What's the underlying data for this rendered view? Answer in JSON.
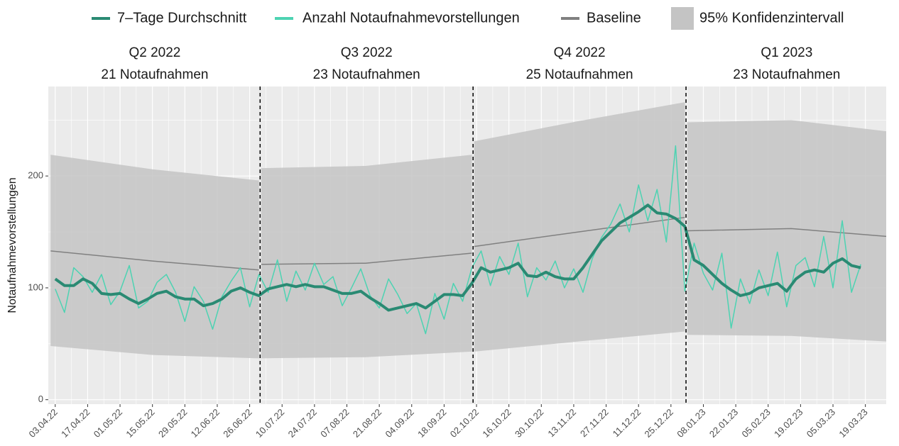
{
  "chart_data": {
    "type": "line",
    "y_label": "Notaufnahmevorstellungen",
    "ylim": [
      -4,
      280
    ],
    "yticks": [
      0,
      100,
      200
    ],
    "xlim": [
      "31.03.22",
      "28.03.23"
    ],
    "xticks": [
      "03.04.22",
      "17.04.22",
      "01.05.22",
      "15.05.22",
      "29.05.22",
      "12.06.22",
      "26.06.22",
      "10.07.22",
      "24.07.22",
      "07.08.22",
      "21.08.22",
      "04.09.22",
      "18.09.22",
      "02.10.22",
      "16.10.22",
      "30.10.22",
      "13.11.22",
      "27.11.22",
      "11.12.22",
      "25.12.22",
      "08.01.23",
      "22.01.23",
      "05.02.23",
      "19.02.23",
      "05.03.23",
      "19.03.23"
    ],
    "grid": true,
    "dividers": [
      "01.07.22",
      "01.10.22",
      "01.01.23"
    ],
    "x": [
      "03.04.22",
      "07.04.22",
      "11.04.22",
      "15.04.22",
      "19.04.22",
      "23.04.22",
      "27.04.22",
      "01.05.22",
      "05.05.22",
      "09.05.22",
      "13.05.22",
      "17.05.22",
      "21.05.22",
      "25.05.22",
      "29.05.22",
      "02.06.22",
      "06.06.22",
      "10.06.22",
      "14.06.22",
      "18.06.22",
      "22.06.22",
      "26.06.22",
      "30.06.22",
      "04.07.22",
      "08.07.22",
      "12.07.22",
      "16.07.22",
      "20.07.22",
      "24.07.22",
      "28.07.22",
      "01.08.22",
      "05.08.22",
      "09.08.22",
      "13.08.22",
      "17.08.22",
      "21.08.22",
      "25.08.22",
      "29.08.22",
      "02.09.22",
      "06.09.22",
      "10.09.22",
      "14.09.22",
      "18.09.22",
      "22.09.22",
      "26.09.22",
      "30.09.22",
      "04.10.22",
      "08.10.22",
      "12.10.22",
      "16.10.22",
      "20.10.22",
      "24.10.22",
      "28.10.22",
      "01.11.22",
      "05.11.22",
      "09.11.22",
      "13.11.22",
      "17.11.22",
      "21.11.22",
      "25.11.22",
      "29.11.22",
      "03.12.22",
      "07.12.22",
      "11.12.22",
      "15.12.22",
      "19.12.22",
      "23.12.22",
      "27.12.22",
      "31.12.22",
      "04.01.23",
      "08.01.23",
      "12.01.23",
      "16.01.23",
      "20.01.23",
      "24.01.23",
      "28.01.23",
      "01.02.23",
      "05.02.23",
      "09.02.23",
      "13.02.23",
      "17.02.23",
      "21.02.23",
      "25.02.23",
      "01.03.23",
      "05.03.23",
      "09.03.23",
      "13.03.23",
      "17.03.23"
    ],
    "series": [
      {
        "name": "7–Tage Durchschnitt",
        "color": "#2a8a73",
        "width": 4,
        "values": [
          108,
          102,
          102,
          108,
          104,
          95,
          94,
          95,
          90,
          86,
          90,
          95,
          97,
          92,
          90,
          90,
          84,
          86,
          90,
          97,
          100,
          96,
          93,
          99,
          101,
          103,
          101,
          103,
          101,
          101,
          98,
          95,
          95,
          97,
          91,
          86,
          80,
          82,
          84,
          86,
          82,
          88,
          94,
          94,
          93,
          104,
          118,
          114,
          116,
          118,
          122,
          111,
          110,
          114,
          110,
          108,
          108,
          118,
          130,
          142,
          150,
          158,
          163,
          168,
          174,
          167,
          166,
          162,
          155,
          125,
          120,
          112,
          104,
          98,
          93,
          95,
          100,
          102,
          104,
          97,
          108,
          114,
          116,
          114,
          122,
          126,
          120,
          118
        ]
      },
      {
        "name": "Anzahl Notaufnahmevorstellungen",
        "color": "#4dd3b2",
        "width": 1.5,
        "values": [
          99,
          78,
          118,
          110,
          96,
          112,
          85,
          97,
          120,
          82,
          88,
          105,
          112,
          96,
          70,
          101,
          88,
          63,
          92,
          106,
          118,
          83,
          112,
          96,
          125,
          88,
          115,
          98,
          122,
          103,
          110,
          84,
          100,
          117,
          93,
          82,
          108,
          94,
          77,
          86,
          59,
          95,
          72,
          104,
          88,
          118,
          133,
          102,
          128,
          112,
          140,
          92,
          118,
          107,
          124,
          100,
          117,
          96,
          126,
          145,
          157,
          175,
          150,
          192,
          160,
          188,
          141,
          227,
          97,
          140,
          113,
          98,
          131,
          64,
          108,
          86,
          116,
          93,
          132,
          83,
          120,
          127,
          101,
          146,
          100,
          160,
          96,
          121
        ]
      }
    ],
    "baseline_name": "Baseline",
    "baseline_color": "#808080",
    "band_name": "95% Konfidenzintervall",
    "band_color": "#c4c4c4",
    "panels": [
      {
        "title": "Q2 2022",
        "subtitle": "21 Notaufnahmen",
        "x": [
          "01.04.22",
          "15.05.22",
          "30.06.22"
        ],
        "baseline": [
          133,
          124,
          116
        ],
        "lower": [
          48,
          40,
          37
        ],
        "upper": [
          219,
          206,
          196
        ]
      },
      {
        "title": "Q3 2022",
        "subtitle": "23 Notaufnahmen",
        "x": [
          "01.07.22",
          "15.08.22",
          "30.09.22"
        ],
        "baseline": [
          121,
          122,
          131
        ],
        "lower": [
          37,
          38,
          43
        ],
        "upper": [
          207,
          209,
          219
        ]
      },
      {
        "title": "Q4 2022",
        "subtitle": "25 Notaufnahmen",
        "x": [
          "01.10.22",
          "15.11.22",
          "31.12.22"
        ],
        "baseline": [
          137,
          150,
          163
        ],
        "lower": [
          43,
          52,
          61
        ],
        "upper": [
          231,
          249,
          266
        ]
      },
      {
        "title": "Q1 2023",
        "subtitle": "23 Notaufnahmen",
        "x": [
          "01.01.23",
          "15.02.23",
          "28.03.23"
        ],
        "baseline": [
          151,
          153,
          146
        ],
        "lower": [
          58,
          57,
          52
        ],
        "upper": [
          248,
          250,
          240
        ]
      }
    ]
  }
}
